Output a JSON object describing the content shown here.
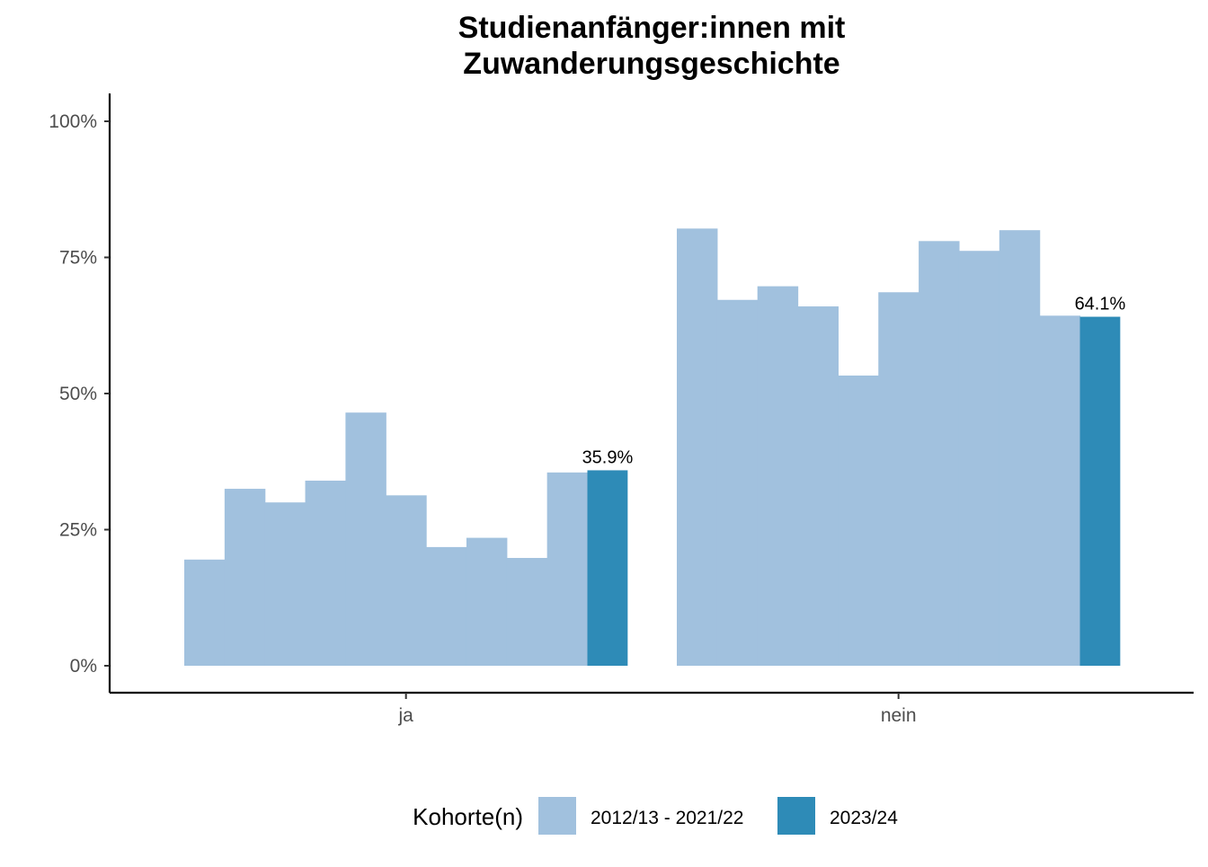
{
  "chart_data": {
    "type": "bar",
    "title_lines": [
      "Studienanfänger:innen mit",
      "Zuwanderungsgeschichte"
    ],
    "xlabel": "",
    "ylabel": "",
    "ylim": [
      0,
      1.05
    ],
    "y_ticks": [
      {
        "value": 0,
        "label": "0%"
      },
      {
        "value": 0.25,
        "label": "25%"
      },
      {
        "value": 0.5,
        "label": "50%"
      },
      {
        "value": 0.75,
        "label": "75%"
      },
      {
        "value": 1.0,
        "label": "100%"
      }
    ],
    "categories": [
      "ja",
      "nein"
    ],
    "series": [
      {
        "name": "2012/13 - 2021/22",
        "color": "#a1c1de",
        "values": [
          [
            0.195,
            0.325,
            0.3,
            0.34,
            0.465,
            0.313,
            0.218,
            0.235,
            0.198,
            0.355
          ],
          [
            0.803,
            0.672,
            0.697,
            0.66,
            0.533,
            0.686,
            0.78,
            0.762,
            0.8,
            0.643
          ]
        ]
      },
      {
        "name": "2023/24",
        "color": "#2e8bb7",
        "values": [
          [
            0.359
          ],
          [
            0.641
          ]
        ],
        "labels": [
          "35.9%",
          "64.1%"
        ]
      }
    ],
    "legend": {
      "title": "Kohorte(n)",
      "position": "bottom"
    },
    "grid": false
  }
}
